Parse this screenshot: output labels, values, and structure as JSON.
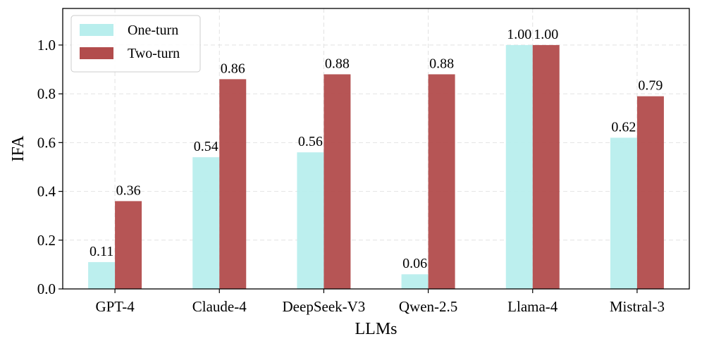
{
  "chart_data": {
    "type": "bar",
    "title": "",
    "xlabel": "LLMs",
    "ylabel": "IFA",
    "ylim": [
      0,
      1.15
    ],
    "yticks": [
      "0.0",
      "0.2",
      "0.4",
      "0.6",
      "0.8",
      "1.0"
    ],
    "grid": true,
    "legend_position": "top-left",
    "categories": [
      "GPT-4",
      "Claude-4",
      "DeepSeek-V3",
      "Qwen-2.5",
      "Llama-4",
      "Mistral-3"
    ],
    "series": [
      {
        "name": "One-turn",
        "color": "#b8eeed",
        "values": [
          0.11,
          0.54,
          0.56,
          0.06,
          1.0,
          0.62
        ],
        "labels": [
          "0.11",
          "0.54",
          "0.56",
          "0.06",
          "1.00",
          "0.62"
        ]
      },
      {
        "name": "Two-turn",
        "color": "#b24c4c",
        "values": [
          0.36,
          0.86,
          0.88,
          0.88,
          1.0,
          0.79
        ],
        "labels": [
          "0.36",
          "0.86",
          "0.88",
          "0.88",
          "1.00",
          "0.79"
        ]
      }
    ]
  }
}
